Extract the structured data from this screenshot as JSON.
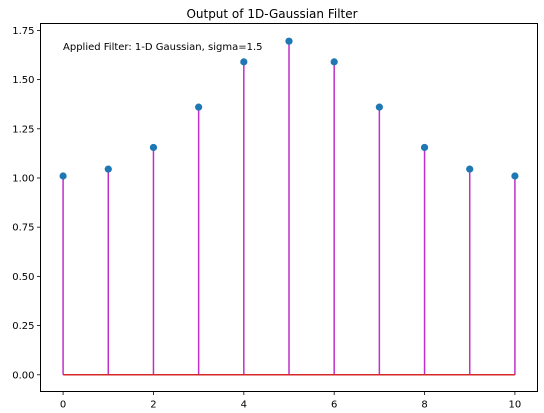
{
  "chart_data": {
    "type": "stem",
    "title": "Output of 1D-Gaussian Filter",
    "annotation": "Applied Filter: 1-D Gaussian, sigma=1.5",
    "xlabel": "",
    "ylabel": "",
    "x": [
      0,
      1,
      2,
      3,
      4,
      5,
      6,
      7,
      8,
      9,
      10
    ],
    "values": [
      1.01,
      1.045,
      1.155,
      1.36,
      1.59,
      1.695,
      1.59,
      1.36,
      1.155,
      1.045,
      1.01
    ],
    "xlim": [
      -0.5,
      10.5
    ],
    "ylim": [
      -0.085,
      1.785
    ],
    "xticks": [
      0,
      2,
      4,
      6,
      8,
      10
    ],
    "xtick_labels": [
      "0",
      "2",
      "4",
      "6",
      "8",
      "10"
    ],
    "yticks": [
      0,
      0.25,
      0.5,
      0.75,
      1.0,
      1.25,
      1.5,
      1.75
    ],
    "ytick_labels": [
      "0.00",
      "0.25",
      "0.50",
      "0.75",
      "1.00",
      "1.25",
      "1.50",
      "1.75"
    ],
    "grid": false,
    "colors": {
      "marker": "#1f77b4",
      "stem": "#c030c8",
      "baseline": "#d62728"
    }
  }
}
